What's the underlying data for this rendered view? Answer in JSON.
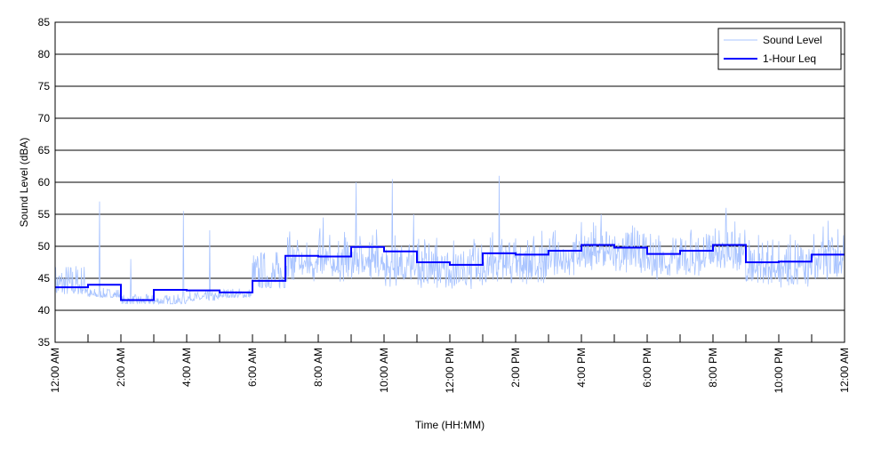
{
  "chart_data": {
    "type": "line",
    "title": "",
    "xlabel": "Time (HH:MM)",
    "ylabel": "Sound Level (dBA)",
    "ylim": [
      35,
      85
    ],
    "yticks": [
      35,
      40,
      45,
      50,
      55,
      60,
      65,
      70,
      75,
      80,
      85
    ],
    "xlim_hours": [
      0,
      24
    ],
    "xtick_labels": [
      "12:00 AM",
      "2:00 AM",
      "4:00 AM",
      "6:00 AM",
      "8:00 AM",
      "10:00 AM",
      "12:00 PM",
      "2:00 PM",
      "4:00 PM",
      "6:00 PM",
      "8:00 PM",
      "10:00 PM",
      "12:00 AM"
    ],
    "grid": "horizontal",
    "legend": {
      "placement": "top-right",
      "entries": [
        "Sound Level",
        "1-Hour Leq"
      ]
    },
    "colors": {
      "sound_level": "#a9c4ff",
      "leq": "#0000ff"
    },
    "series": [
      {
        "name": "1-Hour Leq",
        "x_hours": [
          0,
          1,
          2,
          3,
          4,
          5,
          6,
          7,
          8,
          9,
          10,
          11,
          12,
          13,
          14,
          15,
          16,
          17,
          18,
          19,
          20,
          21,
          22,
          23
        ],
        "values": [
          43.6,
          44.0,
          41.6,
          43.2,
          43.1,
          42.8,
          44.6,
          48.5,
          48.4,
          49.9,
          49.2,
          47.5,
          47.1,
          48.9,
          48.7,
          49.3,
          50.2,
          49.8,
          48.8,
          49.3,
          50.2,
          47.5,
          47.6,
          48.7
        ]
      },
      {
        "name": "Sound Level",
        "baseline_by_hour": [
          42.5,
          42,
          41,
          41,
          41.5,
          42,
          43.5,
          47,
          47,
          47.5,
          46.5,
          46,
          46,
          47,
          47,
          48,
          49,
          48.5,
          47.5,
          48,
          48.5,
          46.5,
          46.5,
          47.5
        ],
        "peaks": [
          [
            1.35,
            57
          ],
          [
            2.3,
            48
          ],
          [
            3.9,
            55.5
          ],
          [
            4.7,
            52.5
          ],
          [
            8.15,
            54.5
          ],
          [
            9.15,
            60
          ],
          [
            10.25,
            60.5
          ],
          [
            10.9,
            55
          ],
          [
            13.5,
            61
          ],
          [
            15.2,
            52.5
          ],
          [
            16.6,
            55
          ],
          [
            20.4,
            56
          ],
          [
            23.5,
            54
          ]
        ]
      }
    ]
  }
}
